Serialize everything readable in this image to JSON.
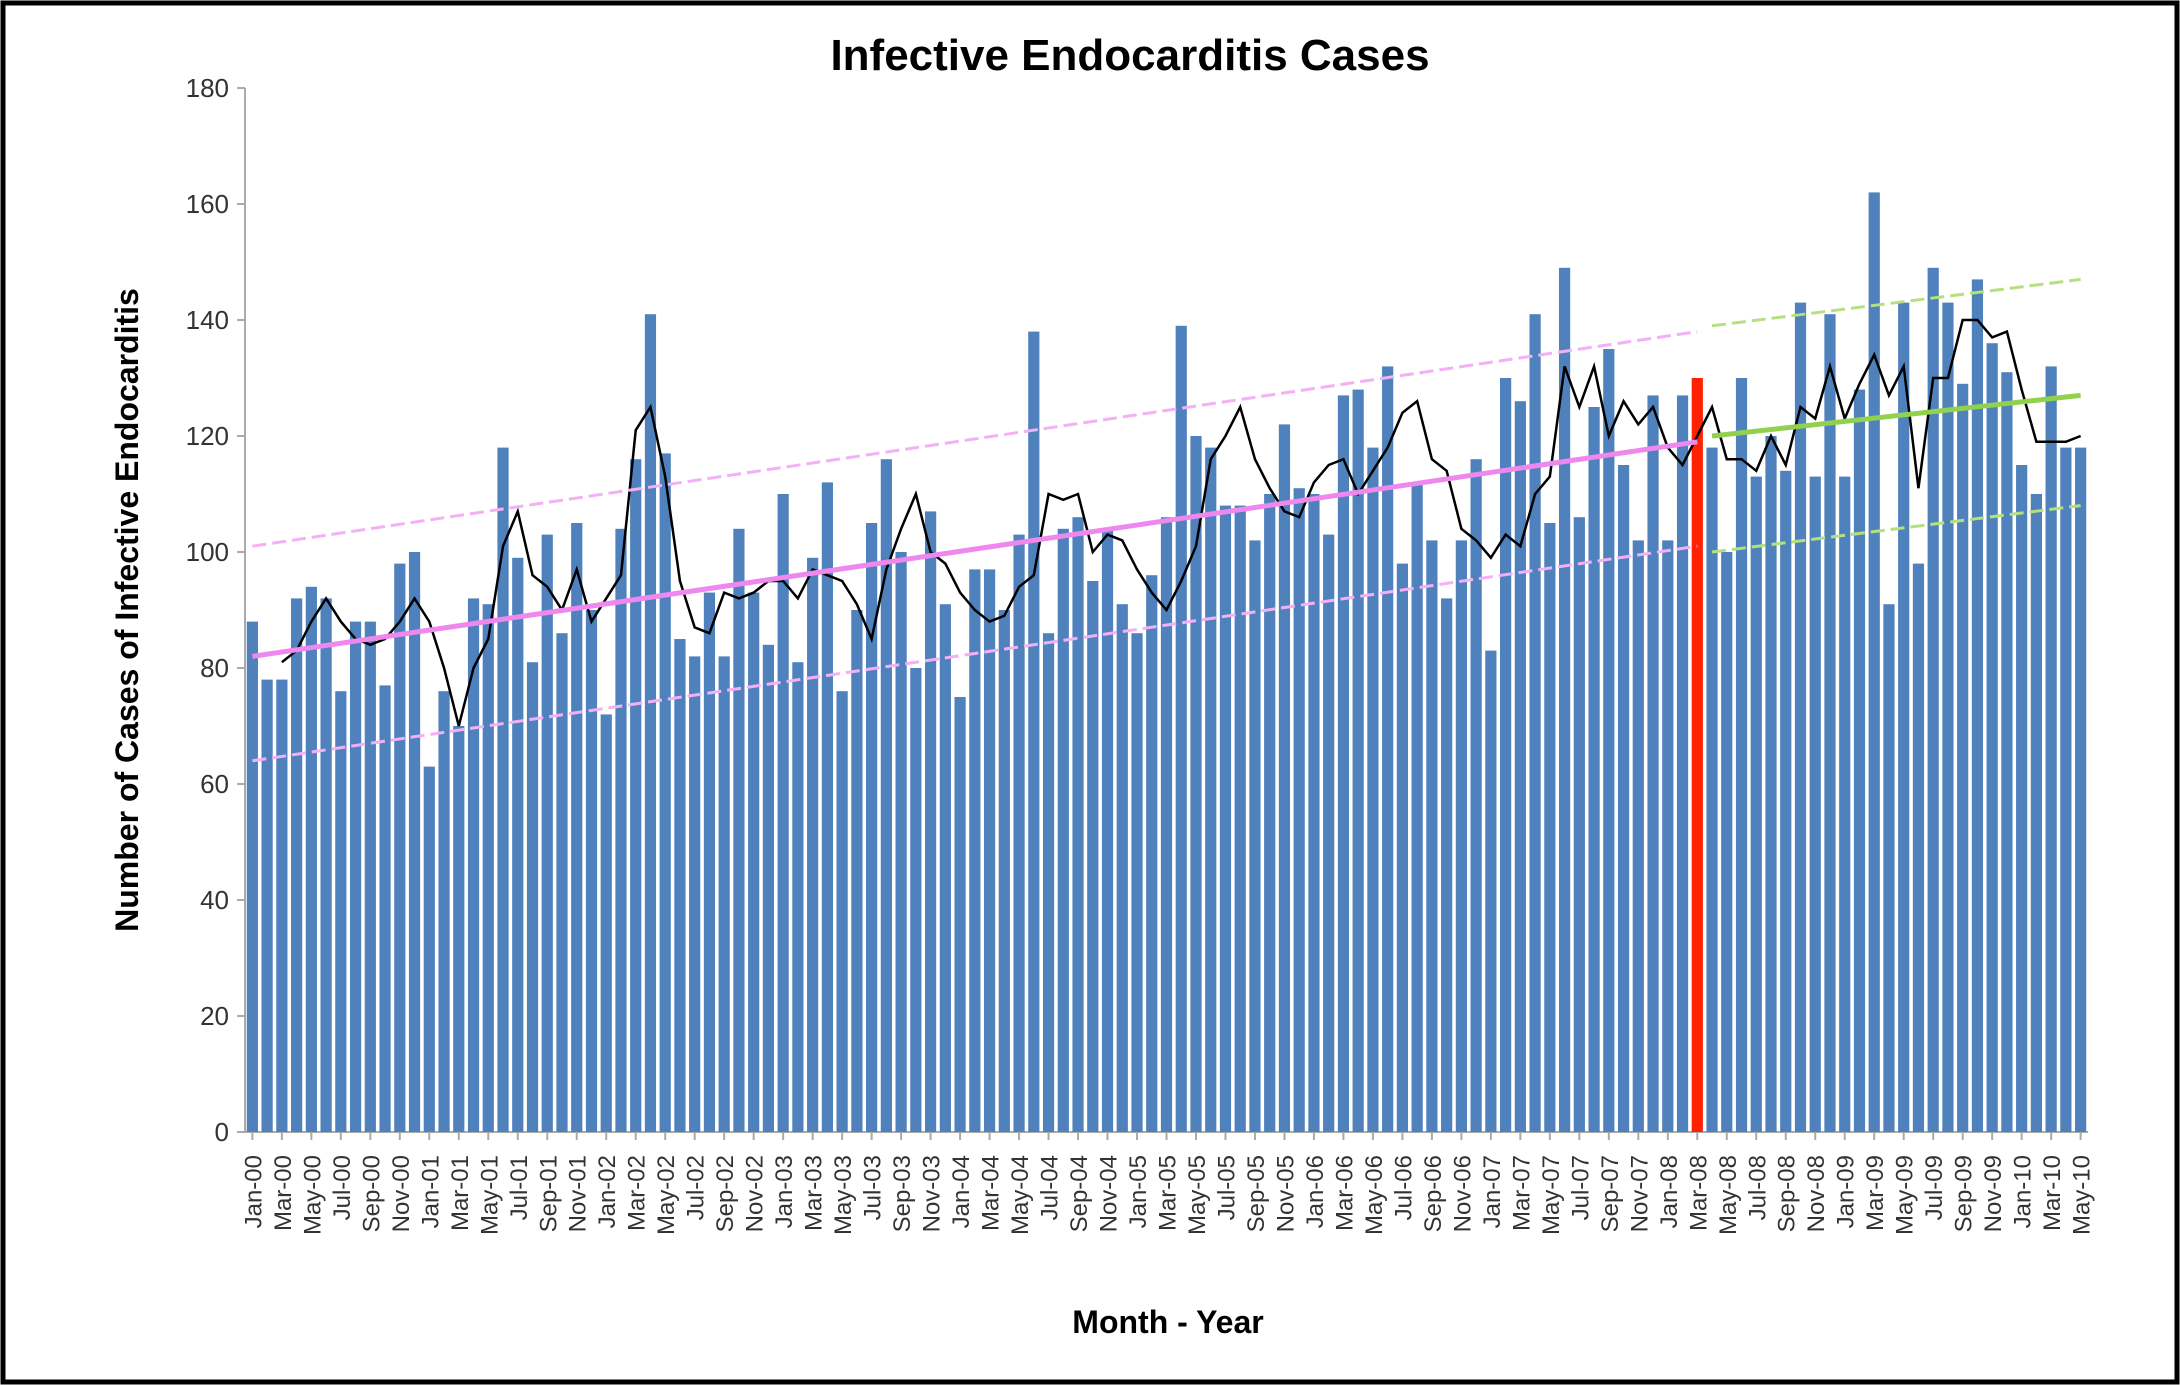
{
  "chart_data": {
    "type": "bar",
    "title": "Infective Endocarditis Cases",
    "xlabel": "Month - Year",
    "ylabel": "Number of Cases  of Infective Endocarditis",
    "ylim": [
      0,
      180
    ],
    "yticks": [
      0,
      20,
      40,
      60,
      80,
      100,
      120,
      140,
      160,
      180
    ],
    "categories": [
      "Jan-00",
      null,
      "Mar-00",
      null,
      "May-00",
      null,
      "Jul-00",
      null,
      "Sep-00",
      null,
      "Nov-00",
      null,
      "Jan-01",
      null,
      "Mar-01",
      null,
      "May-01",
      null,
      "Jul-01",
      null,
      "Sep-01",
      null,
      "Nov-01",
      null,
      "Jan-02",
      null,
      "Mar-02",
      null,
      "May-02",
      null,
      "Jul-02",
      null,
      "Sep-02",
      null,
      "Nov-02",
      null,
      "Jan-03",
      null,
      "Mar-03",
      null,
      "May-03",
      null,
      "Jul-03",
      null,
      "Sep-03",
      null,
      "Nov-03",
      null,
      "Jan-04",
      null,
      "Mar-04",
      null,
      "May-04",
      null,
      "Jul-04",
      null,
      "Sep-04",
      null,
      "Nov-04",
      null,
      "Jan-05",
      null,
      "Mar-05",
      null,
      "May-05",
      null,
      "Jul-05",
      null,
      "Sep-05",
      null,
      "Nov-05",
      null,
      "Jan-06",
      null,
      "Mar-06",
      null,
      "May-06",
      null,
      "Jul-06",
      null,
      "Sep-06",
      null,
      "Nov-06",
      null,
      "Jan-07",
      null,
      "Mar-07",
      null,
      "May-07",
      null,
      "Jul-07",
      null,
      "Sep-07",
      null,
      "Nov-07",
      null,
      "Jan-08",
      null,
      "Mar-08",
      null,
      "May-08",
      null,
      "Jul-08",
      null,
      "Sep-08",
      null,
      "Nov-08",
      null,
      "Jan-09",
      null,
      "Mar-09",
      null,
      "May-09",
      null,
      "Jul-09",
      null,
      "Sep-09",
      null,
      "Nov-09",
      null,
      "Jan-10",
      null,
      "Mar-10",
      null,
      "May-10"
    ],
    "series": [
      {
        "color": "#4f81bd",
        "highlight_index": 98,
        "highlight_color": "#ff2200",
        "values": [
          88,
          78,
          78,
          92,
          94,
          92,
          76,
          88,
          88,
          77,
          98,
          100,
          63,
          76,
          70,
          92,
          91,
          118,
          99,
          81,
          103,
          86,
          105,
          90,
          72,
          104,
          116,
          141,
          117,
          85,
          82,
          93,
          82,
          104,
          93,
          84,
          110,
          81,
          99,
          112,
          76,
          90,
          105,
          116,
          100,
          80,
          107,
          91,
          75,
          97,
          97,
          90,
          103,
          138,
          86,
          104,
          106,
          95,
          104,
          91,
          86,
          96,
          106,
          139,
          120,
          118,
          108,
          108,
          102,
          110,
          122,
          111,
          110,
          103,
          127,
          128,
          118,
          132,
          98,
          112,
          102,
          92,
          102,
          116,
          83,
          130,
          126,
          141,
          105,
          149,
          106,
          125,
          135,
          115,
          102,
          127,
          102,
          127,
          130,
          118,
          100,
          130,
          113,
          120,
          114,
          143,
          113,
          141,
          113,
          128,
          162,
          91,
          143,
          98,
          149,
          143,
          129,
          147,
          136,
          131,
          115,
          110,
          132,
          118,
          118
        ]
      },
      {
        "type": "line",
        "color": "#000000",
        "values": [
          null,
          null,
          81,
          83,
          88,
          92,
          88,
          85,
          84,
          85,
          88,
          92,
          88,
          80,
          70,
          80,
          85,
          101,
          107,
          96,
          94,
          90,
          97,
          88,
          92,
          96,
          121,
          125,
          113,
          95,
          87,
          86,
          93,
          92,
          93,
          95,
          95,
          92,
          97,
          96,
          95,
          91,
          85,
          97,
          104,
          110,
          100,
          98,
          93,
          90,
          88,
          89,
          94,
          96,
          110,
          109,
          110,
          100,
          103,
          102,
          97,
          93,
          90,
          95,
          101,
          116,
          120,
          125,
          116,
          111,
          107,
          106,
          112,
          115,
          116,
          110,
          114,
          118,
          124,
          126,
          116,
          114,
          104,
          102,
          99,
          103,
          101,
          110,
          113,
          132,
          125,
          132,
          120,
          126,
          122,
          125,
          118,
          115,
          120,
          125,
          116,
          116,
          114,
          120,
          115,
          125,
          123,
          132,
          123,
          129,
          134,
          127,
          132,
          111,
          130,
          130,
          140,
          140,
          137,
          138,
          128,
          119,
          119,
          119,
          120
        ]
      }
    ],
    "trend_lines": [
      {
        "color": "#ee88ee",
        "dashed": false,
        "x": [
          0,
          98
        ],
        "values": [
          82,
          119
        ]
      },
      {
        "color": "#f4b0f4",
        "dashed": true,
        "x": [
          0,
          98
        ],
        "values": [
          101,
          138
        ]
      },
      {
        "color": "#f4b0f4",
        "dashed": true,
        "x": [
          0,
          98
        ],
        "values": [
          64,
          101
        ]
      },
      {
        "color": "#92d050",
        "dashed": false,
        "x": [
          99,
          124
        ],
        "values": [
          120,
          127
        ]
      },
      {
        "color": "#b5e07e",
        "dashed": true,
        "x": [
          99,
          124
        ],
        "values": [
          139,
          147
        ]
      },
      {
        "color": "#b5e07e",
        "dashed": true,
        "x": [
          99,
          124
        ],
        "values": [
          100,
          108
        ]
      }
    ]
  }
}
